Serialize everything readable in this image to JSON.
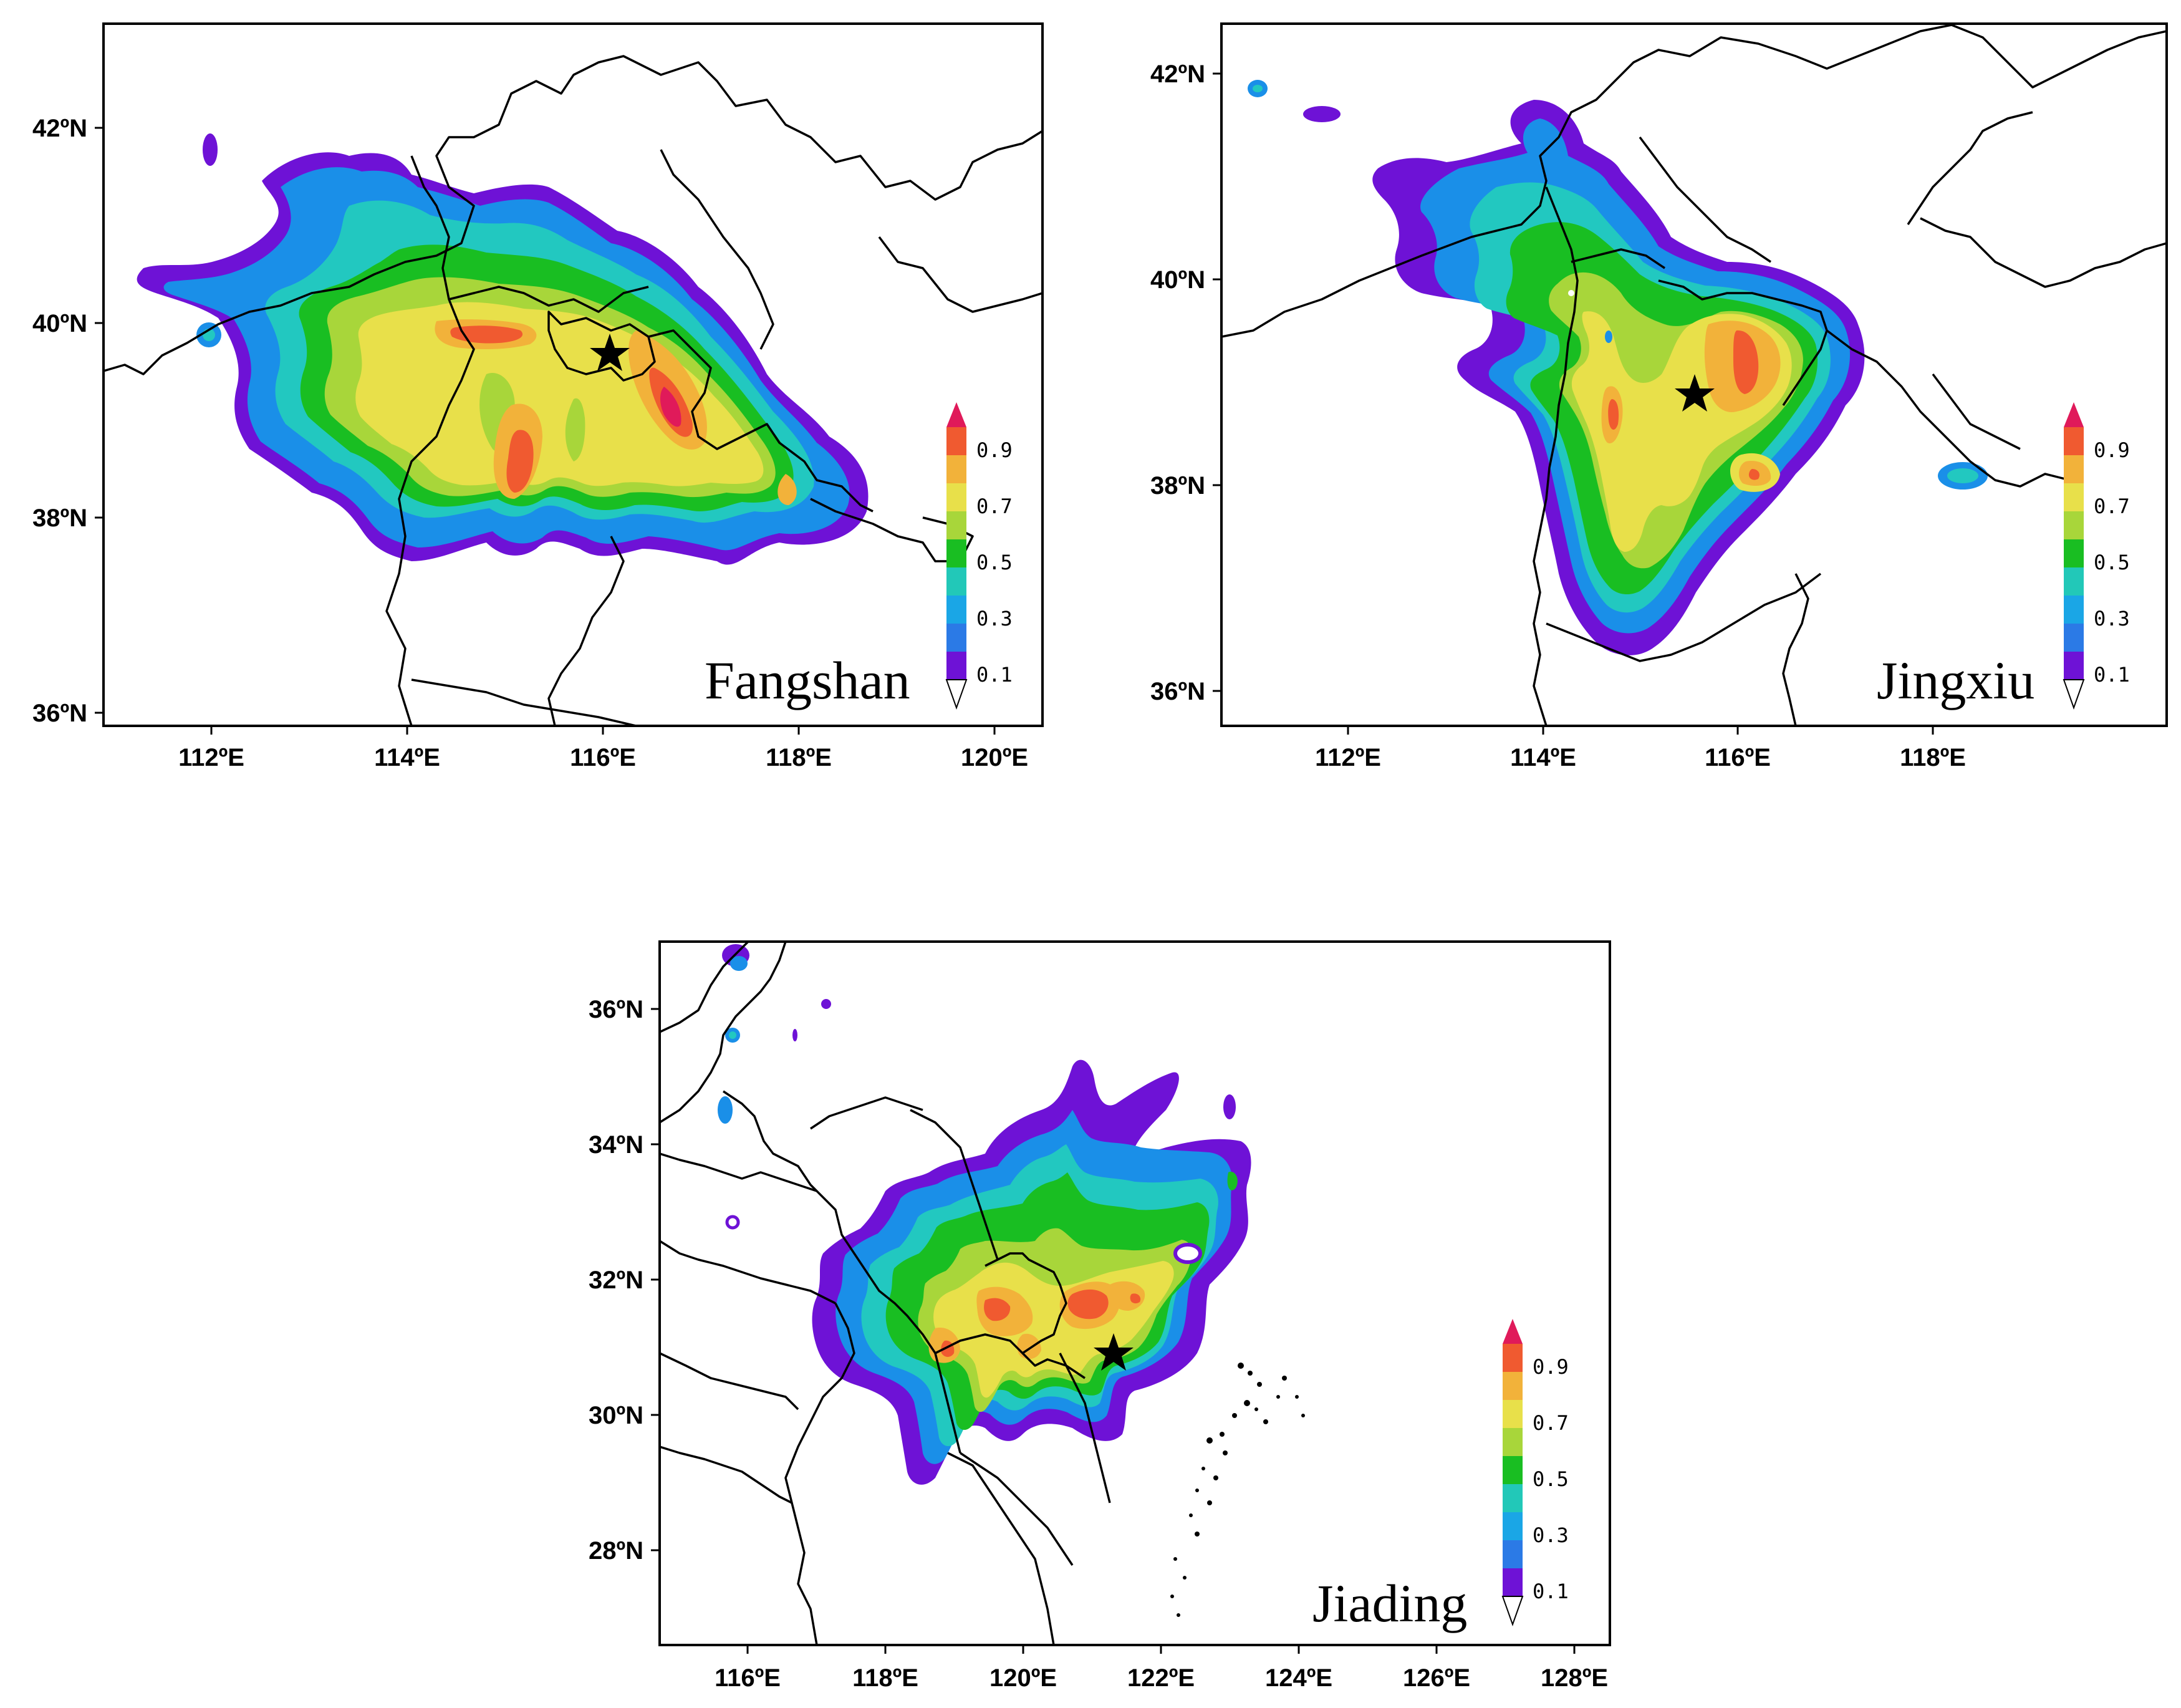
{
  "panels": [
    {
      "id": "fangshan",
      "site": "Fangshan",
      "lon_ticks": [
        "112ºE",
        "114ºE",
        "116ºE",
        "118ºE",
        "120ºE"
      ],
      "lat_ticks": [
        "42ºN",
        "40ºN",
        "38ºN",
        "36ºN"
      ],
      "lon_range": [
        110.8,
        120.4
      ],
      "lat_range": [
        35.9,
        43.1
      ],
      "site_location": {
        "lon": 115.97,
        "lat": 39.72
      }
    },
    {
      "id": "jingxiu",
      "site": "Jingxiu",
      "lon_ticks": [
        "112ºE",
        "114ºE",
        "116ºE",
        "118ºE"
      ],
      "lat_ticks": [
        "42ºN",
        "40ºN",
        "38ºN",
        "36ºN"
      ],
      "lon_range": [
        110.2,
        119.9
      ],
      "lat_range": [
        35.7,
        42.5
      ],
      "site_location": {
        "lon": 115.45,
        "lat": 38.9
      }
    },
    {
      "id": "jiading",
      "site": "Jiading",
      "lon_ticks": [
        "116ºE",
        "118ºE",
        "120ºE",
        "122ºE",
        "124ºE",
        "126ºE",
        "128ºE"
      ],
      "lat_ticks": [
        "36ºN",
        "34ºN",
        "32ºN",
        "30ºN",
        "28ºN"
      ],
      "lon_range": [
        114.8,
        128.6
      ],
      "lat_range": [
        26.9,
        37.3
      ],
      "site_location": {
        "lon": 121.2,
        "lat": 31.3
      }
    }
  ],
  "colorbar": {
    "labels": [
      "0.9",
      "0.7",
      "0.5",
      "0.3",
      "0.1"
    ],
    "colors": [
      "#e8196e",
      "#f03a3a",
      "#f48a2c",
      "#f2c533",
      "#e8e54c",
      "#a6d436",
      "#18b81c",
      "#22c8c0",
      "#1a8fe8",
      "#2b3ed9",
      "#6a0fd0",
      "#ffffff"
    ]
  },
  "levels_colors": {
    "0.1": "#6e12d6",
    "0.2": "#2b7ae6",
    "0.3": "#1aa6e6",
    "0.4": "#22c8b8",
    "0.5": "#19be22",
    "0.6": "#a8d63a",
    "0.7": "#e8e04a",
    "0.8": "#f2b23a",
    "0.9": "#f05a30",
    "1.0": "#e01a5a"
  }
}
